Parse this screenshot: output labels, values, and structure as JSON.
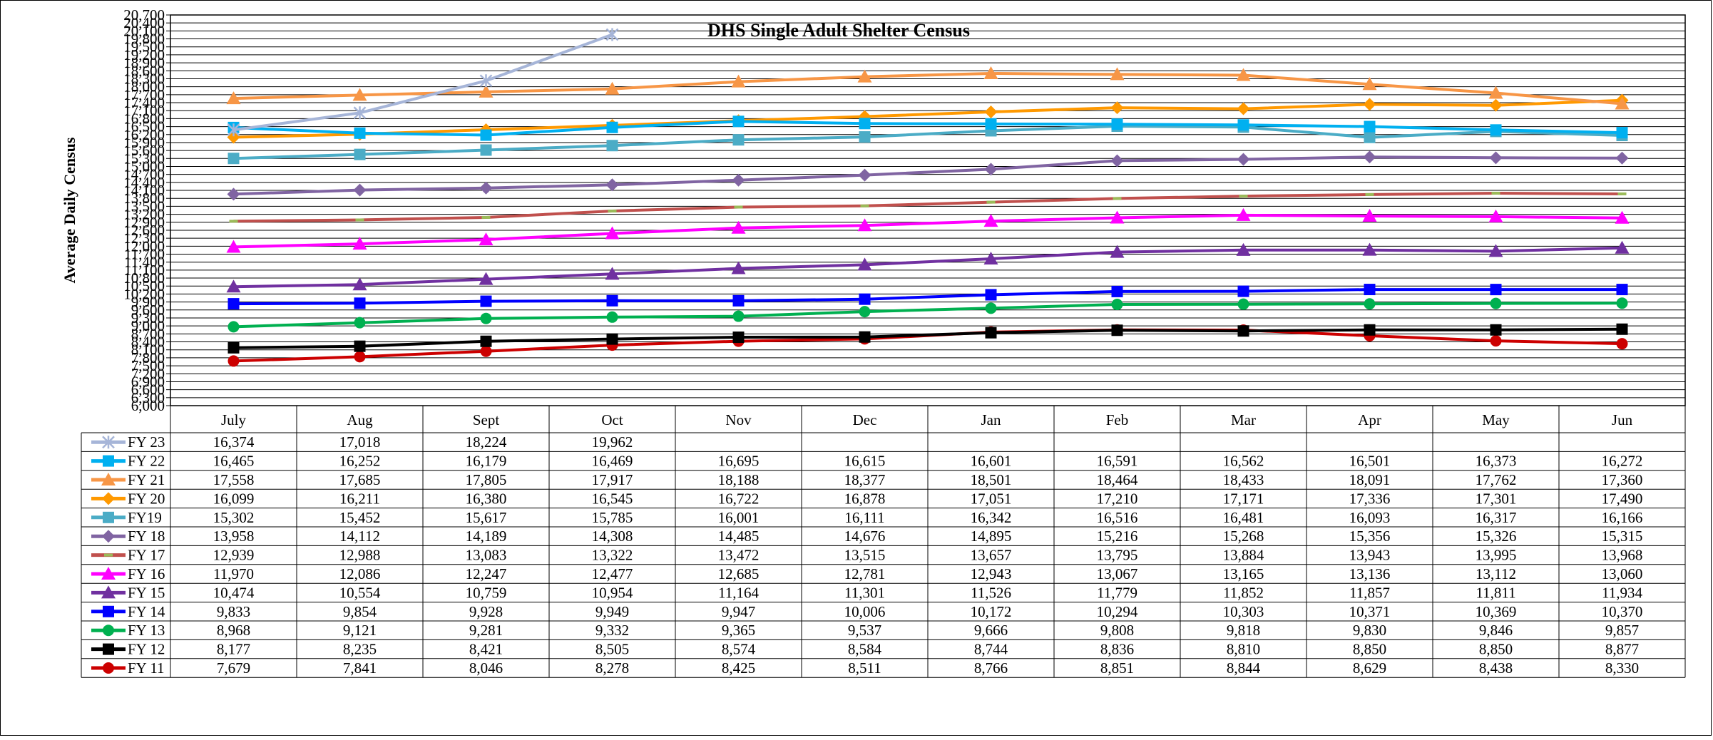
{
  "chart_data": {
    "type": "line",
    "title": "DHS Single Adult Shelter Census",
    "xlabel": "",
    "ylabel": "Average Daily Census",
    "ylim": [
      6000,
      20700
    ],
    "y_tick_step": 300,
    "grid": true,
    "legend": "data-table",
    "categories": [
      "July",
      "Aug",
      "Sept",
      "Oct",
      "Nov",
      "Dec",
      "Jan",
      "Feb",
      "Mar",
      "Apr",
      "May",
      "Jun"
    ],
    "series": [
      {
        "name": "FY 23",
        "color": "#a6b5d8",
        "marker": "x",
        "values": [
          16374,
          17018,
          18224,
          19962,
          null,
          null,
          null,
          null,
          null,
          null,
          null,
          null
        ]
      },
      {
        "name": "FY 22",
        "color": "#00b0f0",
        "marker": "square",
        "values": [
          16465,
          16252,
          16179,
          16469,
          16695,
          16615,
          16601,
          16591,
          16562,
          16501,
          16373,
          16272
        ]
      },
      {
        "name": "FY 21",
        "color": "#f79646",
        "marker": "triangle",
        "values": [
          17558,
          17685,
          17805,
          17917,
          18188,
          18377,
          18501,
          18464,
          18433,
          18091,
          17762,
          17360
        ]
      },
      {
        "name": "FY 20",
        "color": "#ff9900",
        "marker": "diamond",
        "values": [
          16099,
          16211,
          16380,
          16545,
          16722,
          16878,
          17051,
          17210,
          17171,
          17336,
          17301,
          17490
        ]
      },
      {
        "name": "FY19",
        "color": "#4bacc6",
        "marker": "square",
        "values": [
          15302,
          15452,
          15617,
          15785,
          16001,
          16111,
          16342,
          16516,
          16481,
          16093,
          16317,
          16166
        ]
      },
      {
        "name": "FY 18",
        "color": "#8064a2",
        "marker": "diamond",
        "values": [
          13958,
          14112,
          14189,
          14308,
          14485,
          14676,
          14895,
          15216,
          15268,
          15356,
          15326,
          15315
        ]
      },
      {
        "name": "FY 17",
        "color": "#c0504d",
        "marker": "dash",
        "values": [
          12939,
          12988,
          13083,
          13322,
          13472,
          13515,
          13657,
          13795,
          13884,
          13943,
          13995,
          13968
        ]
      },
      {
        "name": "FY 16",
        "color": "#ff00ff",
        "marker": "triangle",
        "values": [
          11970,
          12086,
          12247,
          12477,
          12685,
          12781,
          12943,
          13067,
          13165,
          13136,
          13112,
          13060
        ]
      },
      {
        "name": "FY 15",
        "color": "#7030a0",
        "marker": "triangle",
        "values": [
          10474,
          10554,
          10759,
          10954,
          11164,
          11301,
          11526,
          11779,
          11852,
          11857,
          11811,
          11934
        ]
      },
      {
        "name": "FY 14",
        "color": "#0000ff",
        "marker": "square",
        "values": [
          9833,
          9854,
          9928,
          9949,
          9947,
          10006,
          10172,
          10294,
          10303,
          10371,
          10369,
          10370
        ]
      },
      {
        "name": "FY 13",
        "color": "#00b050",
        "marker": "circle",
        "values": [
          8968,
          9121,
          9281,
          9332,
          9365,
          9537,
          9666,
          9808,
          9818,
          9830,
          9846,
          9857
        ]
      },
      {
        "name": "FY 12",
        "color": "#000000",
        "marker": "square",
        "values": [
          8177,
          8235,
          8421,
          8505,
          8574,
          8584,
          8744,
          8836,
          8810,
          8850,
          8850,
          8877
        ]
      },
      {
        "name": "FY 11",
        "color": "#cc0000",
        "marker": "circle",
        "values": [
          7679,
          7841,
          8046,
          8278,
          8425,
          8511,
          8766,
          8851,
          8844,
          8629,
          8438,
          8330
        ]
      }
    ],
    "table_values": [
      [
        "16,374",
        "17,018",
        "18,224",
        "19,962",
        "",
        "",
        "",
        "",
        "",
        "",
        "",
        ""
      ],
      [
        "16,465",
        "16,252",
        "16,179",
        "16,469",
        "16,695",
        "16,615",
        "16,601",
        "16,591",
        "16,562",
        "16,501",
        "16,373",
        "16,272"
      ],
      [
        "17,558",
        "17,685",
        "17,805",
        "17,917",
        "18,188",
        "18,377",
        "18,501",
        "18,464",
        "18,433",
        "18,091",
        "17,762",
        "17,360"
      ],
      [
        "16,099",
        "16,211",
        "16,380",
        "16,545",
        "16,722",
        "16,878",
        "17,051",
        "17,210",
        "17,171",
        "17,336",
        "17,301",
        "17,490"
      ],
      [
        "15,302",
        "15,452",
        "15,617",
        "15,785",
        "16,001",
        "16,111",
        "16,342",
        "16,516",
        "16,481",
        "16,093",
        "16,317",
        "16,166"
      ],
      [
        "13,958",
        "14,112",
        "14,189",
        "14,308",
        "14,485",
        "14,676",
        "14,895",
        "15,216",
        "15,268",
        "15,356",
        "15,326",
        "15,315"
      ],
      [
        "12,939",
        "12,988",
        "13,083",
        "13,322",
        "13,472",
        "13,515",
        "13,657",
        "13,795",
        "13,884",
        "13,943",
        "13,995",
        "13,968"
      ],
      [
        "11,970",
        "12,086",
        "12,247",
        "12,477",
        "12,685",
        "12,781",
        "12,943",
        "13,067",
        "13,165",
        "13,136",
        "13,112",
        "13,060"
      ],
      [
        "10,474",
        "10,554",
        "10,759",
        "10,954",
        "11,164",
        "11,301",
        "11,526",
        "11,779",
        "11,852",
        "11,857",
        "11,811",
        "11,934"
      ],
      [
        "9,833",
        "9,854",
        "9,928",
        "9,949",
        "9,947",
        "10,006",
        "10,172",
        "10,294",
        "10,303",
        "10,371",
        "10,369",
        "10,370"
      ],
      [
        "8,968",
        "9,121",
        "9,281",
        "9,332",
        "9,365",
        "9,537",
        "9,666",
        "9,808",
        "9,818",
        "9,830",
        "9,846",
        "9,857"
      ],
      [
        "8,177",
        "8,235",
        "8,421",
        "8,505",
        "8,574",
        "8,584",
        "8,744",
        "8,836",
        "8,810",
        "8,850",
        "8,850",
        "8,877"
      ],
      [
        "7,679",
        "7,841",
        "8,046",
        "8,278",
        "8,425",
        "8,511",
        "8,766",
        "8,851",
        "8,844",
        "8,629",
        "8,438",
        "8,330"
      ]
    ]
  }
}
